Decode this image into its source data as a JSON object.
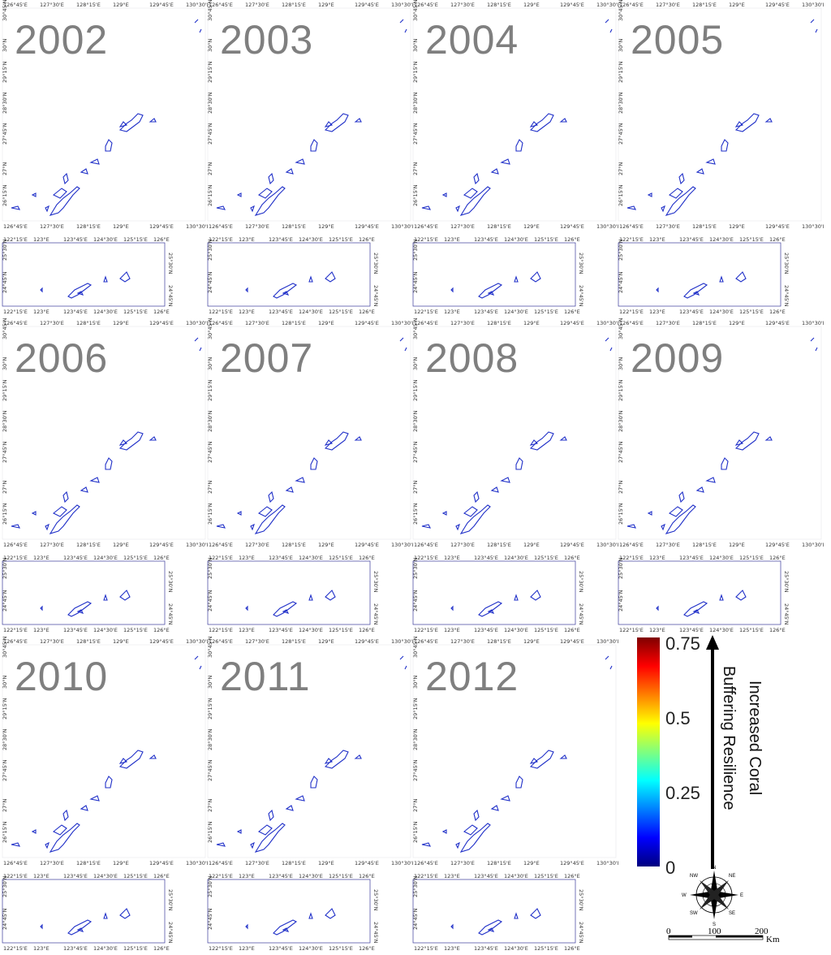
{
  "panels": [
    {
      "year": "2002"
    },
    {
      "year": "2003"
    },
    {
      "year": "2004"
    },
    {
      "year": "2005"
    },
    {
      "year": "2006"
    },
    {
      "year": "2007"
    },
    {
      "year": "2008"
    },
    {
      "year": "2009"
    },
    {
      "year": "2010"
    },
    {
      "year": "2011"
    },
    {
      "year": "2012"
    }
  ],
  "main_map": {
    "lon_ticks": [
      "126°45'E",
      "127°30'E",
      "128°15'E",
      "129°E",
      "129°45'E",
      "130°30'E"
    ],
    "lat_ticks": [
      "26°15'N",
      "27°N",
      "27°45'N",
      "28°30'N",
      "29°15'N",
      "30°N",
      "30°45'N"
    ]
  },
  "inset_map": {
    "lon_ticks": [
      "122°15'E",
      "123°E",
      "123°45'E",
      "124°30'E",
      "125°15'E",
      "126°E"
    ],
    "lat_ticks": [
      "24°45'N",
      "25°30'N"
    ]
  },
  "legend": {
    "max_label": "0.75",
    "mid_label": "0.5",
    "low_label": "0.25",
    "min_label": "0",
    "title_line1": "Increased Coral",
    "title_line2": "Buffering Resilience",
    "colormap": [
      "#00007f",
      "#0000ff",
      "#007fff",
      "#00ffff",
      "#7fff7f",
      "#ffff00",
      "#ff7f00",
      "#ff0000",
      "#7f0000"
    ],
    "compass": {
      "n": "N",
      "ne": "NE",
      "e": "E",
      "se": "SE",
      "s": "S",
      "sw": "SW",
      "w": "W",
      "nw": "NW"
    },
    "scale": {
      "t0": "0",
      "t1": "100",
      "t2": "200",
      "unit": "Km"
    }
  }
}
